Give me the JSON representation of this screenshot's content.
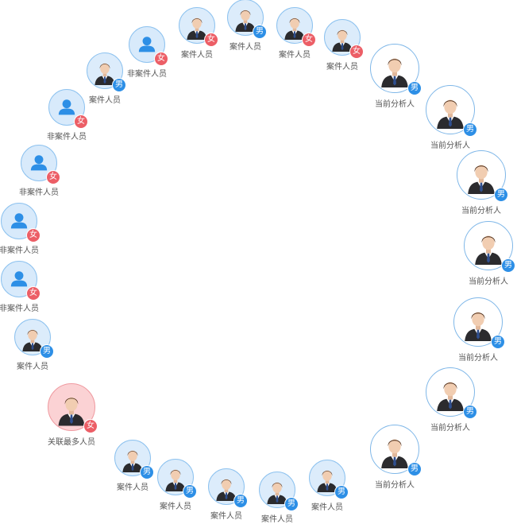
{
  "gender": {
    "male": "男",
    "female": "女"
  },
  "nodes": [
    {
      "label": "案件人员",
      "role": "case",
      "gender": "female"
    },
    {
      "label": "案件人员",
      "role": "case",
      "gender": "male"
    },
    {
      "label": "案件人员",
      "role": "case",
      "gender": "female"
    },
    {
      "label": "案件人员",
      "role": "case",
      "gender": "female"
    },
    {
      "label": "当前分析人",
      "role": "analyst",
      "gender": "male"
    },
    {
      "label": "当前分析人",
      "role": "analyst",
      "gender": "male"
    },
    {
      "label": "当前分析人",
      "role": "analyst",
      "gender": "male"
    },
    {
      "label": "当前分析人",
      "role": "analyst",
      "gender": "male"
    },
    {
      "label": "当前分析人",
      "role": "analyst",
      "gender": "male"
    },
    {
      "label": "当前分析人",
      "role": "analyst",
      "gender": "male"
    },
    {
      "label": "当前分析人",
      "role": "analyst",
      "gender": "male"
    },
    {
      "label": "案件人员",
      "role": "case",
      "gender": "male"
    },
    {
      "label": "案件人员",
      "role": "case",
      "gender": "male"
    },
    {
      "label": "案件人员",
      "role": "case",
      "gender": "male"
    },
    {
      "label": "案件人员",
      "role": "case",
      "gender": "male"
    },
    {
      "label": "案件人员",
      "role": "case",
      "gender": "male"
    },
    {
      "label": "关联最多人员",
      "role": "most",
      "gender": "female"
    },
    {
      "label": "案件人员",
      "role": "case",
      "gender": "male"
    },
    {
      "label": "非案件人员",
      "role": "noncase",
      "gender": "female"
    },
    {
      "label": "非案件人员",
      "role": "noncase",
      "gender": "female"
    },
    {
      "label": "非案件人员",
      "role": "noncase",
      "gender": "female"
    },
    {
      "label": "非案件人员",
      "role": "noncase",
      "gender": "female"
    },
    {
      "label": "案件人员",
      "role": "case",
      "gender": "male"
    },
    {
      "label": "非案件人员",
      "role": "noncase",
      "gender": "female"
    }
  ]
}
